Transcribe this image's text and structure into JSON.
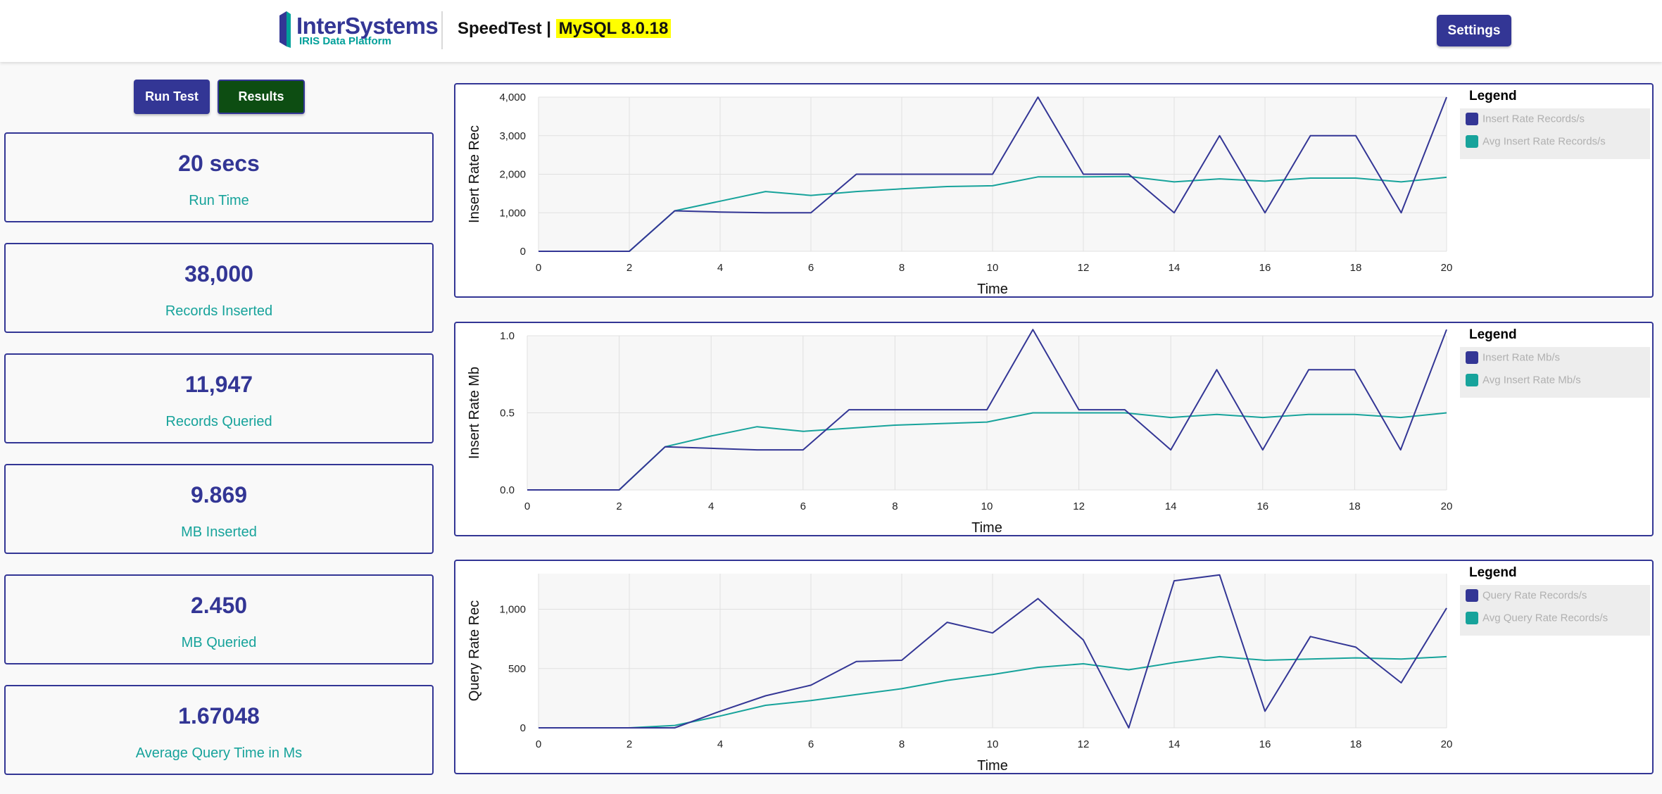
{
  "header": {
    "logo_name": "InterSystems",
    "logo_sub": "IRIS Data Platform",
    "app_name": "SpeedTest |",
    "db_version": "MySQL 8.0.18",
    "settings_label": "Settings"
  },
  "controls": {
    "run_label": "Run Test",
    "results_label": "Results"
  },
  "stats": [
    {
      "value": "20 secs",
      "label": "Run Time"
    },
    {
      "value": "38,000",
      "label": "Records Inserted"
    },
    {
      "value": "11,947",
      "label": "Records Queried"
    },
    {
      "value": "9.869",
      "label": "MB Inserted"
    },
    {
      "value": "2.450",
      "label": "MB Queried"
    },
    {
      "value": "1.67048",
      "label": "Average Query Time in Ms"
    }
  ],
  "colors": {
    "primary": "#333695",
    "teal": "#17a39b",
    "results_green": "#0d4d12",
    "highlight": "#ffff00"
  },
  "chart_data": [
    {
      "type": "line",
      "title": "",
      "xlabel": "Time",
      "ylabel": "Insert Rate Rec",
      "xlim": [
        0,
        20
      ],
      "ylim": [
        0,
        4000
      ],
      "xticks": [
        "0",
        "2",
        "4",
        "6",
        "8",
        "10",
        "12",
        "14",
        "16",
        "18",
        "20"
      ],
      "yticks": [
        "0",
        "1,000",
        "2,000",
        "3,000",
        "4,000"
      ],
      "legend_title": "Legend",
      "legend_position": "right",
      "x": [
        0,
        1,
        2,
        3,
        4,
        5,
        6,
        7,
        8,
        9,
        10,
        11,
        12,
        13,
        14,
        15,
        16,
        17,
        18,
        19,
        20
      ],
      "series": [
        {
          "name": "Insert Rate Records/s",
          "color": "#333695",
          "values": [
            0,
            0,
            0,
            1050,
            1020,
            1000,
            1000,
            2000,
            2000,
            2000,
            2000,
            4000,
            2000,
            2000,
            1000,
            3000,
            1000,
            3000,
            3000,
            1000,
            4000
          ]
        },
        {
          "name": "Avg Insert Rate Records/s",
          "color": "#17a39b",
          "values": [
            0,
            0,
            0,
            1050,
            1300,
            1550,
            1450,
            1550,
            1620,
            1680,
            1700,
            1930,
            1930,
            1940,
            1800,
            1880,
            1820,
            1900,
            1900,
            1800,
            1920
          ]
        }
      ]
    },
    {
      "type": "line",
      "title": "",
      "xlabel": "Time",
      "ylabel": "Insert Rate Mb",
      "xlim": [
        0,
        20
      ],
      "ylim": [
        0,
        1.0
      ],
      "xticks": [
        "0",
        "2",
        "4",
        "6",
        "8",
        "10",
        "12",
        "14",
        "16",
        "18",
        "20"
      ],
      "yticks": [
        "0.0",
        "0.5",
        "1.0"
      ],
      "legend_title": "Legend",
      "legend_position": "right",
      "x": [
        0,
        1,
        2,
        3,
        4,
        5,
        6,
        7,
        8,
        9,
        10,
        11,
        12,
        13,
        14,
        15,
        16,
        17,
        18,
        19,
        20
      ],
      "series": [
        {
          "name": "Insert Rate Mb/s",
          "color": "#333695",
          "values": [
            0,
            0,
            0,
            0.28,
            0.27,
            0.26,
            0.26,
            0.52,
            0.52,
            0.52,
            0.52,
            1.04,
            0.52,
            0.52,
            0.26,
            0.78,
            0.26,
            0.78,
            0.78,
            0.26,
            1.04
          ]
        },
        {
          "name": "Avg Insert Rate Mb/s",
          "color": "#17a39b",
          "values": [
            0,
            0,
            0,
            0.28,
            0.35,
            0.41,
            0.38,
            0.4,
            0.42,
            0.43,
            0.44,
            0.5,
            0.5,
            0.5,
            0.47,
            0.49,
            0.47,
            0.49,
            0.49,
            0.47,
            0.5
          ]
        }
      ]
    },
    {
      "type": "line",
      "title": "",
      "xlabel": "Time",
      "ylabel": "Query Rate Rec",
      "xlim": [
        0,
        20
      ],
      "ylim": [
        0,
        1300
      ],
      "xticks": [
        "0",
        "2",
        "4",
        "6",
        "8",
        "10",
        "12",
        "14",
        "16",
        "18",
        "20"
      ],
      "yticks": [
        "0",
        "500",
        "1,000"
      ],
      "yticks_values": [
        0,
        500,
        1000
      ],
      "legend_title": "Legend",
      "legend_position": "right",
      "x": [
        0,
        1,
        2,
        3,
        4,
        5,
        6,
        7,
        8,
        9,
        10,
        11,
        12,
        13,
        14,
        15,
        16,
        17,
        18,
        19,
        20
      ],
      "series": [
        {
          "name": "Query Rate Records/s",
          "color": "#333695",
          "values": [
            0,
            0,
            0,
            0,
            140,
            270,
            360,
            560,
            570,
            890,
            800,
            1090,
            740,
            0,
            1240,
            1290,
            140,
            770,
            680,
            380,
            1010
          ]
        },
        {
          "name": "Avg Query Rate Records/s",
          "color": "#17a39b",
          "values": [
            0,
            0,
            0,
            20,
            100,
            190,
            230,
            280,
            330,
            400,
            450,
            510,
            540,
            490,
            550,
            600,
            570,
            580,
            590,
            580,
            600
          ]
        }
      ]
    }
  ]
}
